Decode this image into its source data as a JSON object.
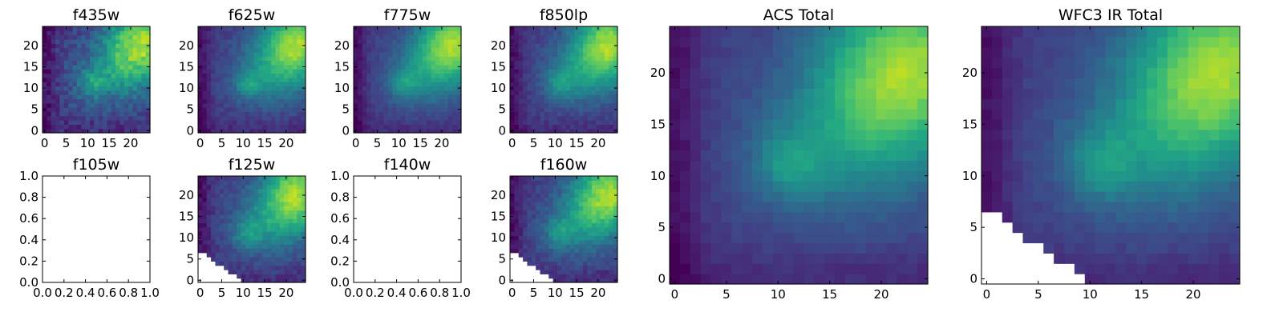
{
  "figure": {
    "title": ""
  },
  "chart_data": [
    {
      "id": "f435w",
      "type": "heatmap",
      "title": "f435w",
      "colormap": "viridis",
      "xlim": [
        -0.5,
        24.5
      ],
      "ylim": [
        -0.5,
        24.5
      ],
      "xticks": [
        "0",
        "5",
        "10",
        "15",
        "20"
      ],
      "yticks": [
        "0",
        "5",
        "10",
        "15",
        "20"
      ],
      "field": {
        "noise": 0.16,
        "masked": false
      }
    },
    {
      "id": "f625w",
      "type": "heatmap",
      "title": "f625w",
      "colormap": "viridis",
      "xlim": [
        -0.5,
        24.5
      ],
      "ylim": [
        -0.5,
        24.5
      ],
      "xticks": [
        "0",
        "5",
        "10",
        "15",
        "20"
      ],
      "yticks": [
        "0",
        "5",
        "10",
        "15",
        "20"
      ],
      "field": {
        "noise": 0.09,
        "masked": false
      }
    },
    {
      "id": "f775w",
      "type": "heatmap",
      "title": "f775w",
      "colormap": "viridis",
      "xlim": [
        -0.5,
        24.5
      ],
      "ylim": [
        -0.5,
        24.5
      ],
      "xticks": [
        "0",
        "5",
        "10",
        "15",
        "20"
      ],
      "yticks": [
        "0",
        "5",
        "10",
        "15",
        "20"
      ],
      "field": {
        "noise": 0.07,
        "masked": false
      }
    },
    {
      "id": "f850lp",
      "type": "heatmap",
      "title": "f850lp",
      "colormap": "viridis",
      "xlim": [
        -0.5,
        24.5
      ],
      "ylim": [
        -0.5,
        24.5
      ],
      "xticks": [
        "0",
        "5",
        "10",
        "15",
        "20"
      ],
      "yticks": [
        "0",
        "5",
        "10",
        "15",
        "20"
      ],
      "field": {
        "noise": 0.09,
        "masked": false
      }
    },
    {
      "id": "acs-total",
      "type": "heatmap",
      "title": "ACS Total",
      "colormap": "viridis",
      "xlim": [
        -0.5,
        24.5
      ],
      "ylim": [
        -0.5,
        24.5
      ],
      "xticks": [
        "0",
        "5",
        "10",
        "15",
        "20"
      ],
      "yticks": [
        "0",
        "5",
        "10",
        "15",
        "20"
      ],
      "field": {
        "noise": 0.05,
        "masked": false
      }
    },
    {
      "id": "wfc3-ir-total",
      "type": "heatmap",
      "title": "WFC3 IR Total",
      "colormap": "viridis",
      "xlim": [
        -0.5,
        24.5
      ],
      "ylim": [
        -0.5,
        24.5
      ],
      "xticks": [
        "0",
        "5",
        "10",
        "15",
        "20"
      ],
      "yticks": [
        "0",
        "5",
        "10",
        "15",
        "20"
      ],
      "field": {
        "noise": 0.05,
        "masked": true
      }
    },
    {
      "id": "f105w",
      "type": "empty",
      "title": "f105w",
      "xlim": [
        0,
        1
      ],
      "ylim": [
        0,
        1
      ],
      "xticks": [
        "0.0",
        "0.2",
        "0.4",
        "0.6",
        "0.8",
        "1.0"
      ],
      "yticks": [
        "0.0",
        "0.2",
        "0.4",
        "0.6",
        "0.8",
        "1.0"
      ]
    },
    {
      "id": "f125w",
      "type": "heatmap",
      "title": "f125w",
      "colormap": "viridis",
      "xlim": [
        -0.5,
        24.5
      ],
      "ylim": [
        -0.5,
        24.5
      ],
      "xticks": [
        "0",
        "5",
        "10",
        "15",
        "20"
      ],
      "yticks": [
        "0",
        "5",
        "10",
        "15",
        "20"
      ],
      "field": {
        "noise": 0.11,
        "masked": true
      }
    },
    {
      "id": "f140w",
      "type": "empty",
      "title": "f140w",
      "xlim": [
        0,
        1
      ],
      "ylim": [
        0,
        1
      ],
      "xticks": [
        "0.0",
        "0.2",
        "0.4",
        "0.6",
        "0.8",
        "1.0"
      ],
      "yticks": [
        "0.0",
        "0.2",
        "0.4",
        "0.6",
        "0.8",
        "1.0"
      ]
    },
    {
      "id": "f160w",
      "type": "heatmap",
      "title": "f160w",
      "colormap": "viridis",
      "xlim": [
        -0.5,
        24.5
      ],
      "ylim": [
        -0.5,
        24.5
      ],
      "xticks": [
        "0",
        "5",
        "10",
        "15",
        "20"
      ],
      "yticks": [
        "0",
        "5",
        "10",
        "15",
        "20"
      ],
      "field": {
        "noise": 0.11,
        "masked": true
      }
    }
  ]
}
